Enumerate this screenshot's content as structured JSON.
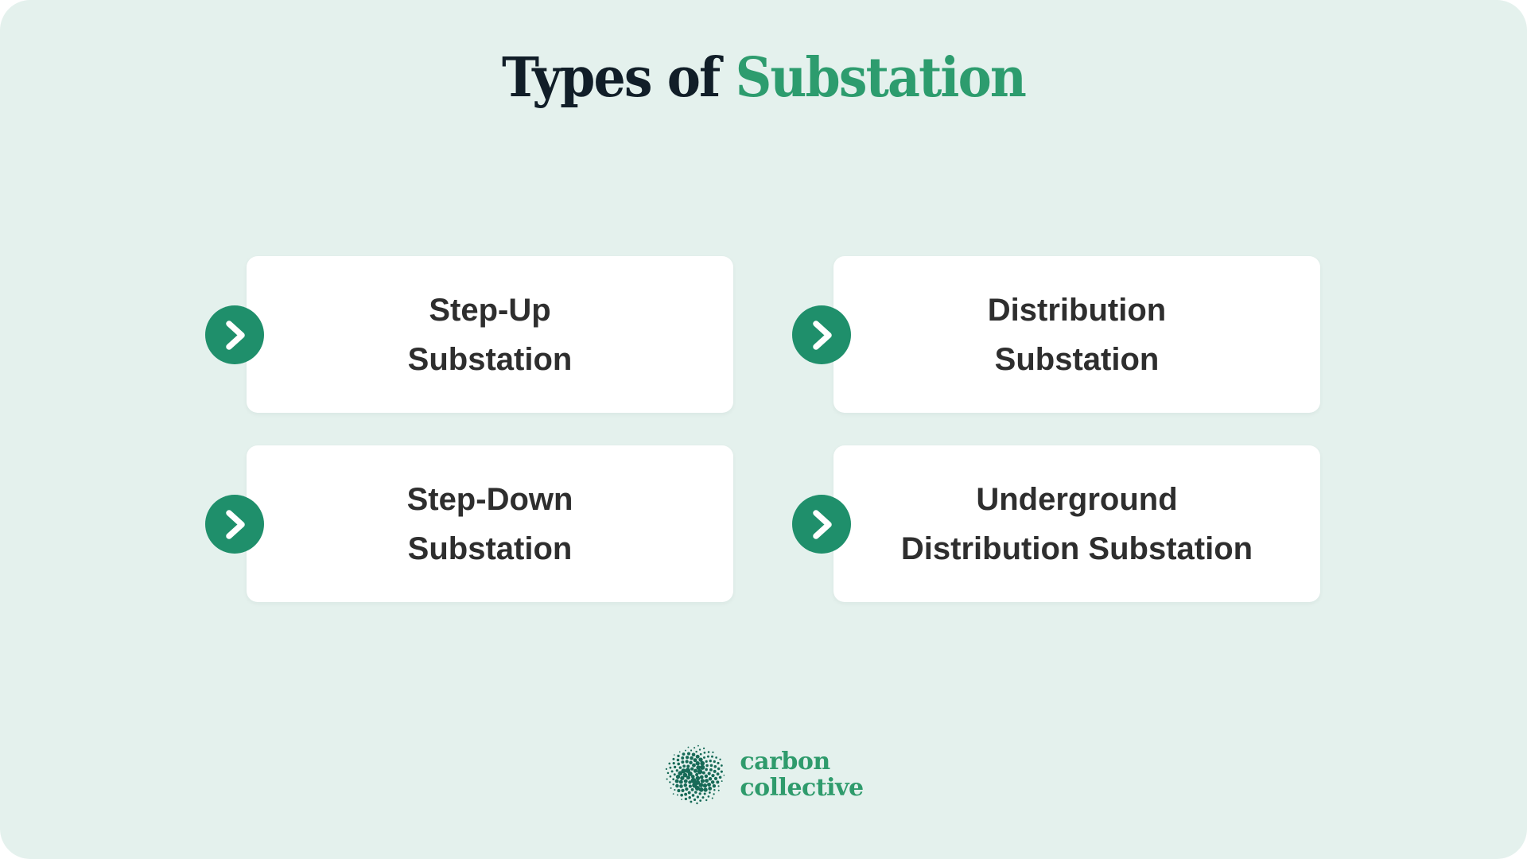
{
  "title": {
    "prefix": "Types of ",
    "highlight": "Substation"
  },
  "cards": [
    {
      "line1": "Step-Up",
      "line2": "Substation"
    },
    {
      "line1": "Distribution",
      "line2": "Substation"
    },
    {
      "line1": "Step-Down",
      "line2": "Substation"
    },
    {
      "line1": "Underground",
      "line2": "Distribution Substation"
    }
  ],
  "brand": {
    "line1": "carbon",
    "line2": "collective"
  },
  "icons": {
    "card_bullet": "chevron-right-icon",
    "brand_mark": "dotted-sphere-icon"
  },
  "colors": {
    "panel_background": "#e4f1ed",
    "card_background": "#ffffff",
    "title_dark": "#111e28",
    "title_green": "#2d9c6e",
    "bullet_green": "#1f8f6b",
    "card_text": "#2e2e2e",
    "brand_green": "#2f9b6c",
    "brand_dots": "#176a57"
  }
}
